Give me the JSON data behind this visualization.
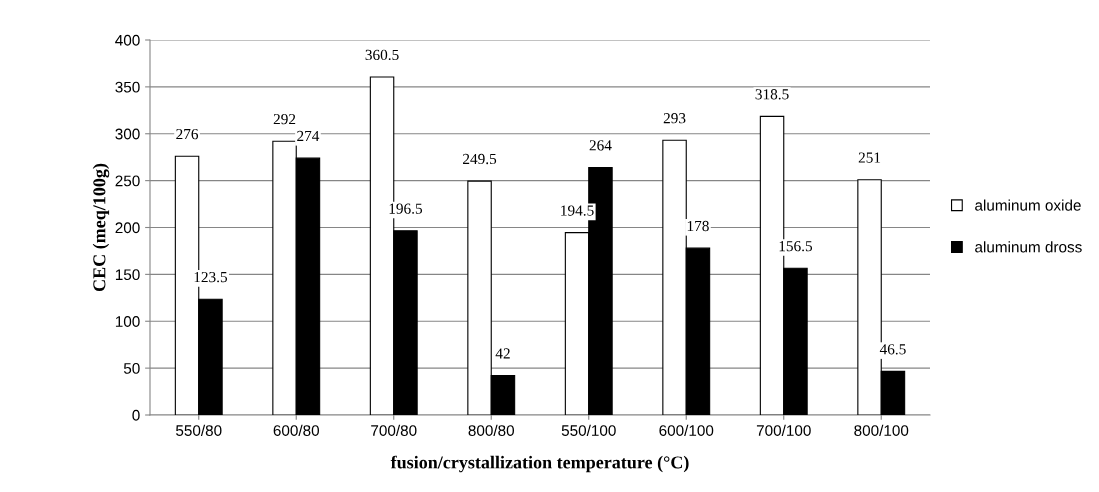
{
  "chart_data": {
    "type": "bar",
    "xlabel": "fusion/crystallization temperature (°C)",
    "ylabel": "CEC (meq/100g)",
    "categories": [
      "550/80",
      "600/80",
      "700/80",
      "800/80",
      "550/100",
      "600/100",
      "700/100",
      "800/100"
    ],
    "series": [
      {
        "name": "aluminum oxide",
        "color": "#ffffff",
        "values": [
          276,
          292,
          360.5,
          249.5,
          194.5,
          293,
          318.5,
          251
        ]
      },
      {
        "name": "aluminum dross",
        "color": "#000000",
        "values": [
          123.5,
          274,
          196.5,
          42,
          264,
          178,
          156.5,
          46.5
        ]
      }
    ],
    "ylim": [
      0,
      400
    ],
    "yticks": [
      0,
      50,
      100,
      150,
      200,
      250,
      300,
      350,
      400
    ],
    "grid": "y",
    "legend": "right",
    "data_labels": true
  }
}
